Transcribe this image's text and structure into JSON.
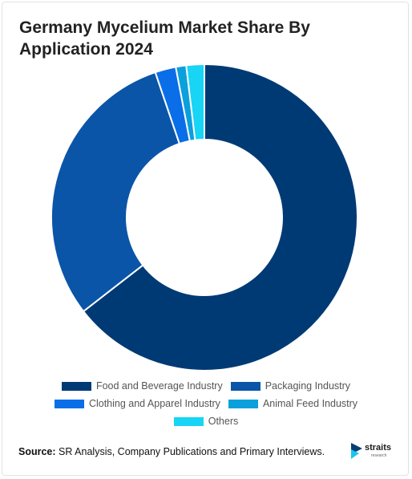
{
  "title": "Germany Mycelium Market Share By Application 2024",
  "chart_data": {
    "type": "pie",
    "variant": "donut",
    "title": "Germany Mycelium Market Share By Application 2024",
    "categories": [
      "Food and Beverage Industry",
      "Packaging Industry",
      "Clothing and Apparel Industry",
      "Animal Feed Industry",
      "Others"
    ],
    "values": [
      64.5,
      30.3,
      2.2,
      1.1,
      1.9
    ],
    "unit": "%",
    "colors": [
      "#003a75",
      "#0a55a7",
      "#0a6ee8",
      "#0aa0dc",
      "#18d4f5"
    ],
    "legend_position": "bottom"
  },
  "source": {
    "label": "Source:",
    "text": "SR Analysis, Company Publications and Primary Interviews."
  },
  "logo": {
    "word": "straits",
    "sub": "research"
  }
}
